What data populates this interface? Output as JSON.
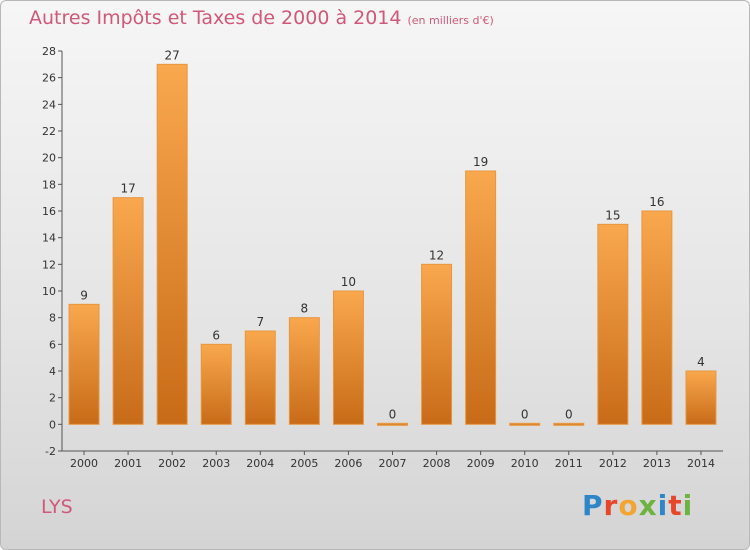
{
  "header": {
    "title": "Autres Impôts et Taxes de 2000 à 2014",
    "subtitle": "(en milliers d'€)"
  },
  "footer": {
    "city": "LYS",
    "logo_text": "Proxiti",
    "logo_colors": [
      "#2e86c8",
      "#e8462a",
      "#f2a531",
      "#6db33f",
      "#2e86c8",
      "#e8462a",
      "#6db33f"
    ]
  },
  "colors": {
    "bar_light": "#f9a84e",
    "bar_dark": "#c86b18",
    "title": "#d0587a"
  },
  "chart_data": {
    "type": "bar",
    "categories": [
      "2000",
      "2001",
      "2002",
      "2003",
      "2004",
      "2005",
      "2006",
      "2007",
      "2008",
      "2009",
      "2010",
      "2011",
      "2012",
      "2013",
      "2014"
    ],
    "values": [
      9,
      17,
      27,
      6,
      7,
      8,
      10,
      0,
      12,
      19,
      0,
      0,
      15,
      16,
      4
    ],
    "ylim": [
      -2,
      28
    ],
    "yticks": [
      -2,
      0,
      2,
      4,
      6,
      8,
      10,
      12,
      14,
      16,
      18,
      20,
      22,
      24,
      26,
      28
    ],
    "grid": false,
    "legend": "none"
  }
}
